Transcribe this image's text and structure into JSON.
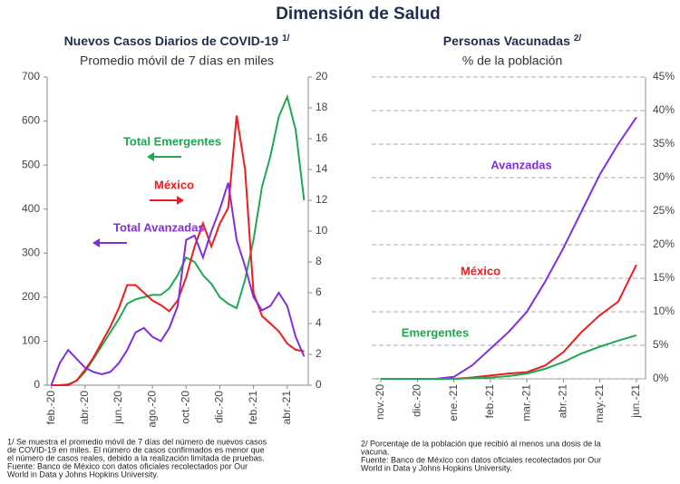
{
  "title": "Dimensión de Salud",
  "chart_data": [
    {
      "type": "line",
      "title": "Nuevos Casos Diarios de COVID-19",
      "title_note": "1/",
      "subtitle": "Promedio móvil de 7 días en miles",
      "categories": [
        "feb.-20",
        null,
        null,
        null,
        "abr.-20",
        null,
        null,
        null,
        "jun.-20",
        null,
        null,
        null,
        "ago.-20",
        null,
        null,
        null,
        "oct.-20",
        null,
        null,
        null,
        "dic.-20",
        null,
        null,
        null,
        "feb.-21",
        null,
        null,
        null,
        "abr.-21",
        null,
        null
      ],
      "series": [
        {
          "name": "Total Emergentes",
          "color": "#1fa84f",
          "axis": "y",
          "values": [
            0,
            0,
            2,
            10,
            30,
            60,
            90,
            120,
            150,
            185,
            195,
            200,
            205,
            205,
            220,
            250,
            290,
            280,
            250,
            230,
            200,
            185,
            175,
            240,
            330,
            450,
            520,
            610,
            655,
            580,
            420
          ]
        },
        {
          "name": "México",
          "color": "#ee1c1c",
          "axis": "y2",
          "values": [
            0,
            0,
            0,
            0.3,
            1,
            1.8,
            2.8,
            3.8,
            5,
            6.5,
            6.5,
            6,
            5.5,
            5.2,
            4.8,
            5.5,
            7,
            9,
            10.5,
            9,
            10.5,
            11.5,
            17.5,
            14,
            6,
            4.5,
            4,
            3.5,
            2.7,
            2.3,
            2.2
          ]
        },
        {
          "name": "Total Avanzadas",
          "color": "#7f2fe0",
          "axis": "y",
          "values": [
            0,
            50,
            80,
            60,
            40,
            30,
            25,
            30,
            50,
            80,
            120,
            130,
            110,
            100,
            130,
            180,
            330,
            340,
            290,
            350,
            400,
            460,
            330,
            270,
            200,
            170,
            180,
            210,
            180,
            110,
            65
          ]
        }
      ],
      "ylim": [
        0,
        700
      ],
      "yticks": [
        0,
        100,
        200,
        300,
        400,
        500,
        600,
        700
      ],
      "y2lim": [
        0,
        20
      ],
      "y2ticks": [
        0,
        2,
        4,
        6,
        8,
        10,
        12,
        14,
        16,
        18,
        20
      ],
      "footnote": [
        "1/ Se muestra el promedio móvil de 7 días del número de nuevos casos",
        "de COVID-19 en miles. El número de casos confirmados es menor que",
        "el número de casos reales, debido a la realización limitada de pruebas.",
        "Fuente: Banco de México con datos oficiales recolectados por Our",
        "World in Data y Johns Hopkins University."
      ]
    },
    {
      "type": "line",
      "title": "Personas Vacunadas",
      "title_note": "2/",
      "subtitle": "% de la población",
      "categories": [
        "nov.-20",
        null,
        "dic.-20",
        null,
        "ene.-21",
        null,
        "feb.-21",
        null,
        "mar.-21",
        null,
        "abr.-21",
        null,
        "may.-21",
        null,
        "jun.-21"
      ],
      "series": [
        {
          "name": "Avanzadas",
          "color": "#7f2fe0",
          "axis": "y2",
          "values": [
            0,
            0,
            0,
            0,
            0.3,
            2,
            4.5,
            7,
            10,
            14.5,
            19.5,
            25,
            30.5,
            35,
            39
          ]
        },
        {
          "name": "México",
          "color": "#ee1c1c",
          "axis": "y2",
          "values": [
            0,
            0,
            0,
            0,
            0,
            0.2,
            0.5,
            0.8,
            1,
            2,
            4,
            7,
            9.5,
            11.5,
            17
          ]
        },
        {
          "name": "Emergentes",
          "color": "#1fa84f",
          "axis": "y2",
          "values": [
            0,
            0,
            0,
            0,
            0,
            0.1,
            0.2,
            0.4,
            0.8,
            1.5,
            2.5,
            3.8,
            4.8,
            5.7,
            6.5
          ]
        }
      ],
      "y2lim": [
        0,
        45
      ],
      "y2ticks": [
        {
          "value": 0,
          "label": "0%"
        },
        {
          "value": 5,
          "label": "5%"
        },
        {
          "value": 10,
          "label": "10%"
        },
        {
          "value": 15,
          "label": "15%"
        },
        {
          "value": 20,
          "label": "20%"
        },
        {
          "value": 25,
          "label": "25%"
        },
        {
          "value": 30,
          "label": "30%"
        },
        {
          "value": 35,
          "label": "35%"
        },
        {
          "value": 40,
          "label": "40%"
        },
        {
          "value": 45,
          "label": "45%"
        }
      ],
      "grid": true,
      "footnote": [
        "2/ Porcentaje de la población que recibió al menos una dosis de la",
        "vacuna.",
        "Fuente: Banco de México con datos oficiales recolectados por Our",
        "World in Data y Johns Hopkins University."
      ]
    }
  ]
}
